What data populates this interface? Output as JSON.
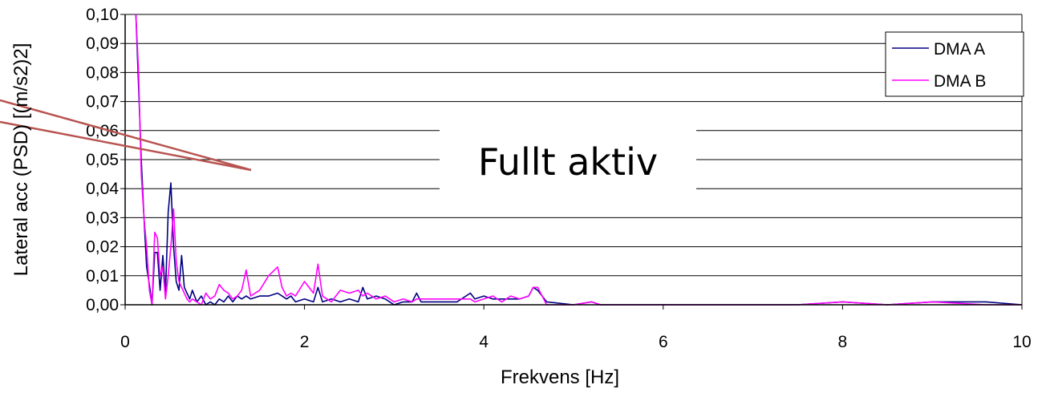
{
  "chart_data": {
    "type": "line",
    "title": "",
    "xlabel": "Frekvens [Hz]",
    "ylabel": "Lateral acc (PSD) [(m/s2)2]",
    "xlim": [
      0,
      10
    ],
    "ylim": [
      0,
      0.1
    ],
    "x_ticks": [
      "0",
      "2",
      "4",
      "6",
      "8",
      "10"
    ],
    "y_ticks": [
      "0,00",
      "0,01",
      "0,02",
      "0,03",
      "0,04",
      "0,05",
      "0,06",
      "0,07",
      "0,08",
      "0,09",
      "0,10"
    ],
    "grid": "horizontal",
    "legend_position": "top-right",
    "annotation": "Fullt aktiv",
    "series": [
      {
        "name": "DMA A",
        "color": "#000080",
        "x": [
          0.12,
          0.15,
          0.18,
          0.21,
          0.24,
          0.27,
          0.3,
          0.33,
          0.36,
          0.39,
          0.42,
          0.45,
          0.48,
          0.51,
          0.54,
          0.57,
          0.6,
          0.63,
          0.66,
          0.69,
          0.72,
          0.75,
          0.8,
          0.85,
          0.9,
          0.95,
          1.0,
          1.05,
          1.1,
          1.15,
          1.2,
          1.25,
          1.3,
          1.35,
          1.4,
          1.5,
          1.6,
          1.7,
          1.75,
          1.8,
          1.85,
          1.9,
          2.0,
          2.1,
          2.15,
          2.2,
          2.3,
          2.4,
          2.5,
          2.6,
          2.65,
          2.7,
          2.8,
          2.9,
          3.0,
          3.1,
          3.2,
          3.25,
          3.3,
          3.5,
          3.7,
          3.85,
          3.9,
          4.0,
          4.1,
          4.2,
          4.3,
          4.4,
          4.5,
          4.55,
          4.6,
          4.7,
          5.0,
          5.2,
          5.3,
          5.5,
          6.0,
          6.5,
          7.0,
          7.5,
          8.0,
          8.5,
          9.0,
          9.6,
          10.0
        ],
        "y": [
          0.1,
          0.075,
          0.05,
          0.03,
          0.013,
          0.007,
          0.0,
          0.018,
          0.018,
          0.005,
          0.017,
          0.004,
          0.032,
          0.042,
          0.02,
          0.008,
          0.005,
          0.017,
          0.006,
          0.004,
          0.002,
          0.005,
          0.001,
          0.003,
          0.0,
          0.001,
          0.0,
          0.002,
          0.001,
          0.003,
          0.001,
          0.003,
          0.002,
          0.003,
          0.002,
          0.003,
          0.003,
          0.004,
          0.003,
          0.002,
          0.003,
          0.001,
          0.002,
          0.001,
          0.006,
          0.001,
          0.002,
          0.001,
          0.002,
          0.001,
          0.006,
          0.002,
          0.003,
          0.002,
          0.0,
          0.001,
          0.001,
          0.004,
          0.001,
          0.001,
          0.001,
          0.004,
          0.002,
          0.003,
          0.002,
          0.002,
          0.002,
          0.002,
          0.003,
          0.006,
          0.005,
          0.001,
          0.0,
          0.001,
          0.0,
          0.0,
          0.0,
          0.0,
          0.0,
          0.0,
          0.001,
          0.0,
          0.001,
          0.001,
          0.0
        ]
      },
      {
        "name": "DMA B",
        "color": "#ff00ff",
        "x": [
          0.12,
          0.15,
          0.18,
          0.21,
          0.24,
          0.27,
          0.3,
          0.33,
          0.36,
          0.39,
          0.42,
          0.45,
          0.48,
          0.51,
          0.54,
          0.57,
          0.6,
          0.63,
          0.66,
          0.69,
          0.72,
          0.75,
          0.8,
          0.85,
          0.9,
          0.95,
          1.0,
          1.05,
          1.1,
          1.15,
          1.2,
          1.25,
          1.3,
          1.35,
          1.4,
          1.5,
          1.6,
          1.7,
          1.75,
          1.8,
          1.85,
          1.9,
          2.0,
          2.1,
          2.15,
          2.2,
          2.3,
          2.4,
          2.5,
          2.6,
          2.65,
          2.7,
          2.8,
          2.9,
          3.0,
          3.1,
          3.2,
          3.25,
          3.3,
          3.5,
          3.7,
          3.85,
          3.9,
          4.0,
          4.1,
          4.2,
          4.3,
          4.4,
          4.5,
          4.55,
          4.6,
          4.7,
          5.0,
          5.2,
          5.3,
          5.5,
          6.0,
          6.5,
          7.0,
          7.5,
          8.0,
          8.5,
          9.0,
          9.6,
          10.0
        ],
        "y": [
          0.1,
          0.08,
          0.045,
          0.03,
          0.02,
          0.005,
          0.0,
          0.025,
          0.023,
          0.01,
          0.013,
          0.002,
          0.01,
          0.02,
          0.033,
          0.015,
          0.008,
          0.006,
          0.004,
          0.002,
          0.001,
          0.002,
          0.001,
          0.0,
          0.004,
          0.002,
          0.003,
          0.007,
          0.005,
          0.004,
          0.002,
          0.003,
          0.005,
          0.012,
          0.003,
          0.005,
          0.01,
          0.013,
          0.006,
          0.003,
          0.004,
          0.003,
          0.008,
          0.004,
          0.014,
          0.003,
          0.001,
          0.005,
          0.004,
          0.005,
          0.003,
          0.004,
          0.002,
          0.003,
          0.001,
          0.002,
          0.001,
          0.002,
          0.002,
          0.002,
          0.002,
          0.002,
          0.001,
          0.002,
          0.003,
          0.001,
          0.003,
          0.002,
          0.003,
          0.006,
          0.006,
          0.0,
          0.0,
          0.001,
          0.0,
          0.0,
          0.0,
          0.0,
          0.0,
          0.0,
          0.001,
          0.0,
          0.001,
          0.0,
          0.0
        ]
      }
    ]
  }
}
